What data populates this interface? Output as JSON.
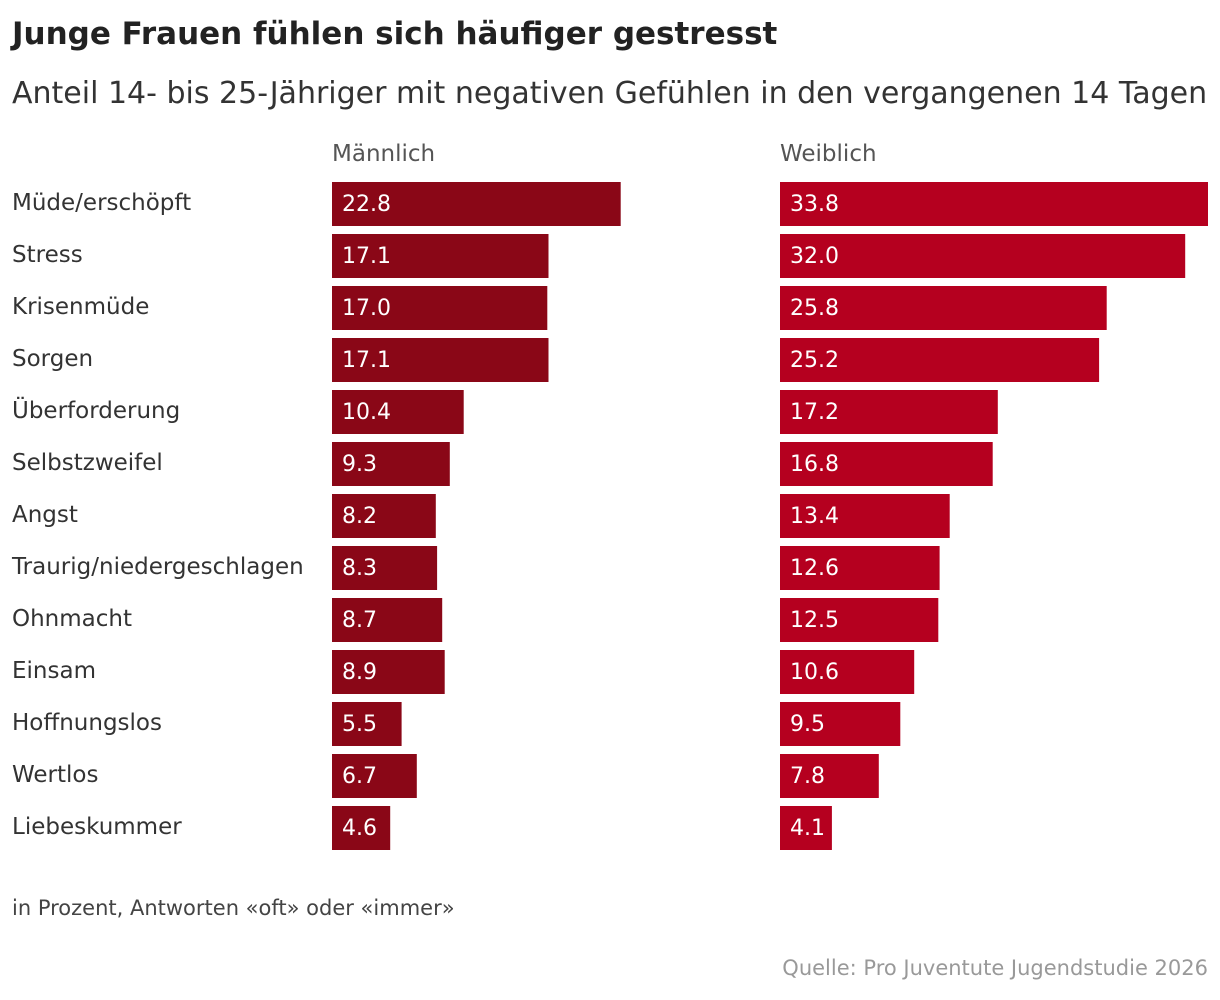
{
  "header": {
    "title": "Junge Frauen fühlen sich häufiger gestresst",
    "subtitle": "Anteil 14- bis 25-Jähriger mit negativen Gefühlen in den vergangenen 14 Tagen"
  },
  "footer": {
    "note": "in Prozent, Antworten «oft» oder «immer»",
    "source": "Quelle: Pro Juventute Jugendstudie 2026"
  },
  "colors": {
    "male": "#8a0717",
    "female": "#b5001f"
  },
  "chart_data": {
    "type": "bar",
    "orientation": "horizontal",
    "categories": [
      "Müde/erschöpft",
      "Stress",
      "Krisenmüde",
      "Sorgen",
      "Überforderung",
      "Selbstzweifel",
      "Angst",
      "Traurig/niedergeschlagen",
      "Ohnmacht",
      "Einsam",
      "Hoffnungslos",
      "Wertlos",
      "Liebeskummer"
    ],
    "series": [
      {
        "name": "Männlich",
        "values": [
          22.8,
          17.1,
          17.0,
          17.1,
          10.4,
          9.3,
          8.2,
          8.3,
          8.7,
          8.9,
          5.5,
          6.7,
          4.6
        ]
      },
      {
        "name": "Weiblich",
        "values": [
          33.8,
          32.0,
          25.8,
          25.2,
          17.2,
          16.8,
          13.4,
          12.6,
          12.5,
          10.6,
          9.5,
          7.8,
          4.1
        ]
      }
    ],
    "value_labels": {
      "Männlich": [
        "22.8",
        "17.1",
        "17.0",
        "17.1",
        "10.4",
        "9.3",
        "8.2",
        "8.3",
        "8.7",
        "8.9",
        "5.5",
        "6.7",
        "4.6"
      ],
      "Weiblich": [
        "33.8",
        "32.0",
        "25.8",
        "25.2",
        "17.2",
        "16.8",
        "13.4",
        "12.6",
        "12.5",
        "10.6",
        "9.5",
        "7.8",
        "4.1"
      ]
    },
    "xlim": [
      0,
      33.8
    ],
    "grid": false,
    "layout": "small-multiples"
  }
}
